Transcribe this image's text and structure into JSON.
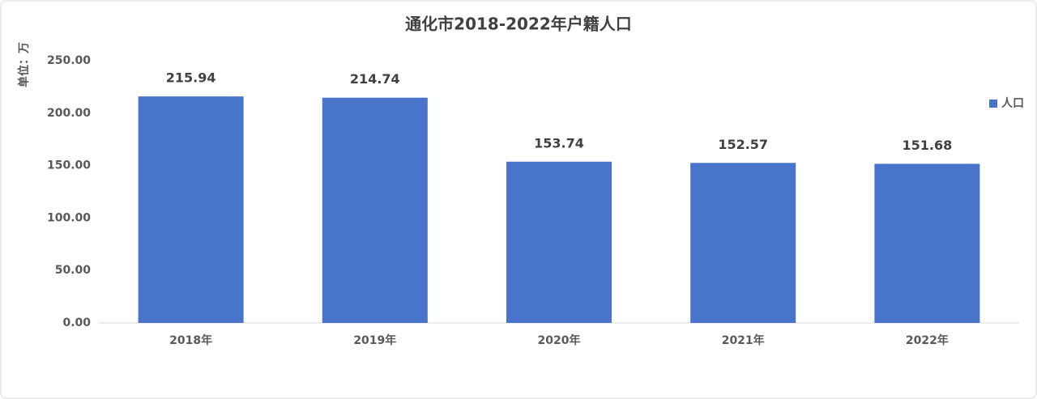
{
  "chart_data": {
    "type": "bar",
    "title": "通化市2018-2022年户籍人口",
    "y_axis_label": "单位：万",
    "categories": [
      "2018年",
      "2019年",
      "2020年",
      "2021年",
      "2022年"
    ],
    "series": [
      {
        "name": "人口",
        "color": "#4874cb",
        "values": [
          215.94,
          214.74,
          153.74,
          152.57,
          151.68
        ]
      }
    ],
    "ylim": [
      0,
      250
    ],
    "yticks": [
      {
        "value": 0,
        "label": "0.00"
      },
      {
        "value": 50,
        "label": "50.00"
      },
      {
        "value": 100,
        "label": "100.00"
      },
      {
        "value": 150,
        "label": "150.00"
      },
      {
        "value": 200,
        "label": "200.00"
      },
      {
        "value": 250,
        "label": "250.00"
      }
    ],
    "grid": false,
    "legend": "right"
  }
}
